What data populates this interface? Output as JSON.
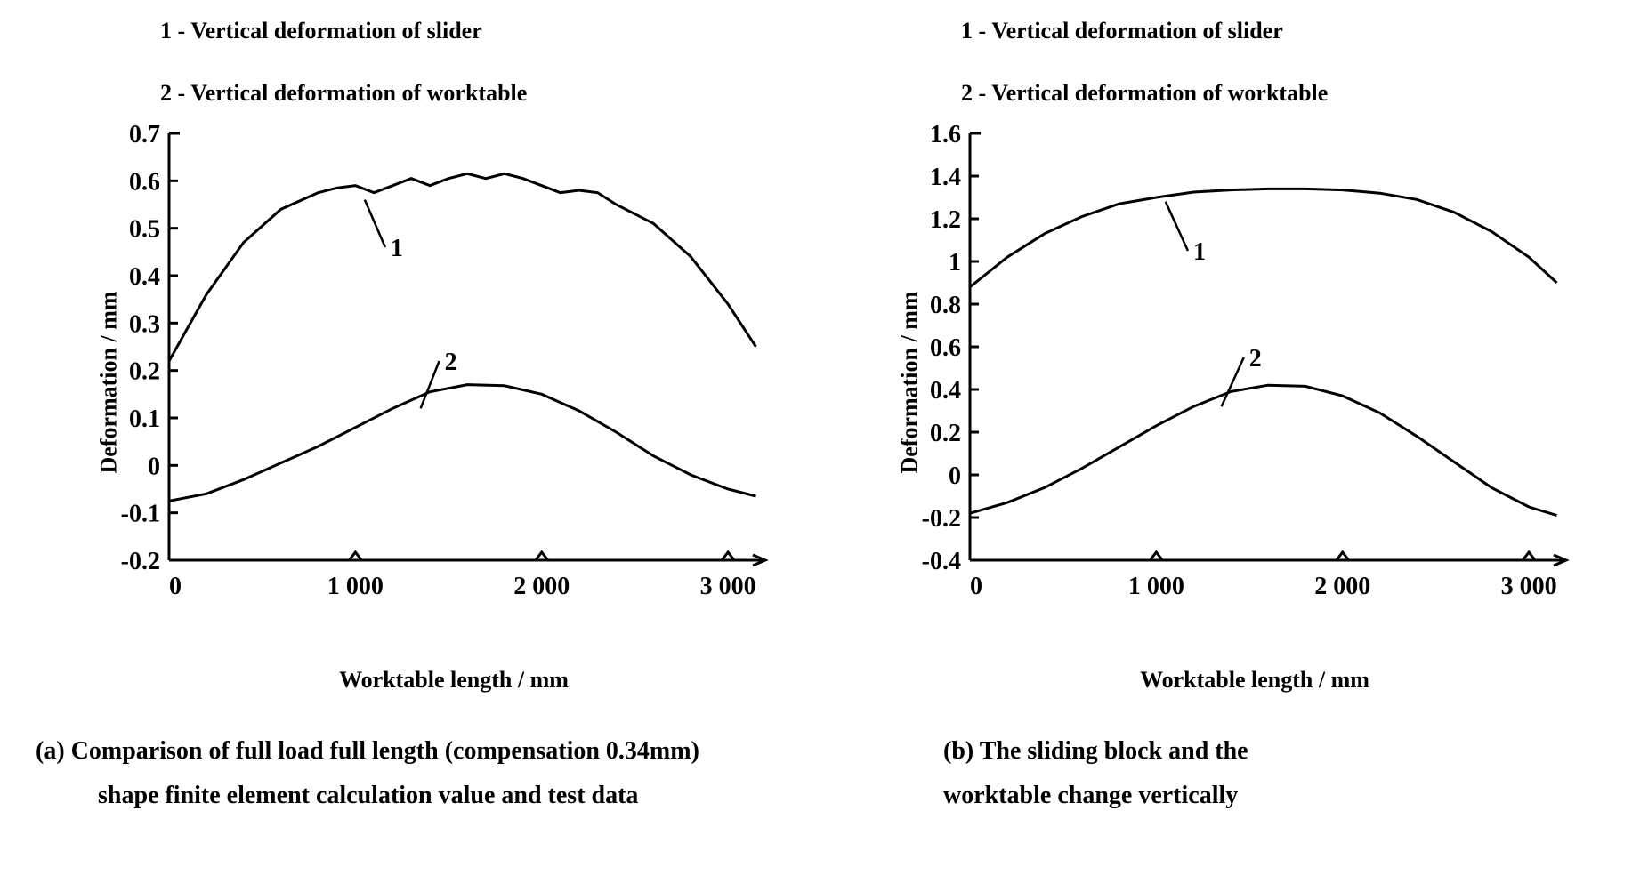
{
  "panel_a": {
    "legend1": "1 - Vertical deformation of slider",
    "legend2": "2 - Vertical deformation of worktable",
    "chart": {
      "type": "line",
      "xlim": [
        0,
        3200
      ],
      "ylim": [
        -0.2,
        0.7
      ],
      "xticks": [
        0,
        1000,
        2000,
        3000
      ],
      "xtick_labels": [
        "0",
        "1 000",
        "2 000",
        "3 000"
      ],
      "yticks": [
        -0.2,
        -0.1,
        0,
        0.1,
        0.2,
        0.3,
        0.4,
        0.5,
        0.6,
        0.7
      ],
      "ytick_labels": [
        "-0.2",
        "-0.1",
        "0",
        "0.1",
        "0.2",
        "0.3",
        "0.4",
        "0.5",
        "0.6",
        "0.7"
      ],
      "series1": {
        "label": "1",
        "leader_from": [
          1050,
          0.56
        ],
        "leader_to": [
          1160,
          0.46
        ],
        "points": [
          [
            0,
            0.22
          ],
          [
            200,
            0.36
          ],
          [
            400,
            0.47
          ],
          [
            600,
            0.54
          ],
          [
            800,
            0.575
          ],
          [
            900,
            0.585
          ],
          [
            1000,
            0.59
          ],
          [
            1100,
            0.575
          ],
          [
            1200,
            0.59
          ],
          [
            1300,
            0.605
          ],
          [
            1400,
            0.59
          ],
          [
            1500,
            0.605
          ],
          [
            1600,
            0.615
          ],
          [
            1700,
            0.605
          ],
          [
            1800,
            0.615
          ],
          [
            1900,
            0.605
          ],
          [
            2000,
            0.59
          ],
          [
            2100,
            0.575
          ],
          [
            2200,
            0.58
          ],
          [
            2300,
            0.575
          ],
          [
            2400,
            0.55
          ],
          [
            2600,
            0.51
          ],
          [
            2800,
            0.44
          ],
          [
            3000,
            0.34
          ],
          [
            3150,
            0.25
          ]
        ]
      },
      "series2": {
        "label": "2",
        "leader_from": [
          1350,
          0.12
        ],
        "leader_to": [
          1450,
          0.22
        ],
        "points": [
          [
            0,
            -0.075
          ],
          [
            200,
            -0.06
          ],
          [
            400,
            -0.03
          ],
          [
            600,
            0.005
          ],
          [
            800,
            0.04
          ],
          [
            1000,
            0.08
          ],
          [
            1200,
            0.12
          ],
          [
            1400,
            0.155
          ],
          [
            1600,
            0.17
          ],
          [
            1800,
            0.168
          ],
          [
            2000,
            0.15
          ],
          [
            2200,
            0.115
          ],
          [
            2400,
            0.07
          ],
          [
            2600,
            0.02
          ],
          [
            2800,
            -0.02
          ],
          [
            3000,
            -0.05
          ],
          [
            3150,
            -0.065
          ]
        ]
      },
      "background_color": "#ffffff",
      "line_color": "#000000",
      "line_width": 3,
      "axis_width": 3,
      "tick_fontsize": 28,
      "label_fontsize": 26
    },
    "xlabel": "Worktable length / mm",
    "ylabel": "Deformation / mm",
    "caption_line1": "(a) Comparison of full load full length (compensation 0.34mm)",
    "caption_line2": "shape finite element calculation value and test data"
  },
  "panel_b": {
    "legend1": "1 - Vertical deformation of slider",
    "legend2": "2 - Vertical deformation of worktable",
    "chart": {
      "type": "line",
      "xlim": [
        0,
        3200
      ],
      "ylim": [
        -0.4,
        1.6
      ],
      "xticks": [
        0,
        1000,
        2000,
        3000
      ],
      "xtick_labels": [
        "0",
        "1 000",
        "2 000",
        "3 000"
      ],
      "yticks": [
        -0.4,
        -0.2,
        0,
        0.2,
        0.4,
        0.6,
        0.8,
        1.0,
        1.2,
        1.4,
        1.6
      ],
      "ytick_labels": [
        "-0.4",
        "-0.2",
        "0",
        "0.2",
        "0.4",
        "0.6",
        "0.8",
        "1",
        "1.2",
        "1.4",
        "1.6"
      ],
      "series1": {
        "label": "1",
        "leader_from": [
          1050,
          1.28
        ],
        "leader_to": [
          1170,
          1.05
        ],
        "points": [
          [
            0,
            0.88
          ],
          [
            200,
            1.02
          ],
          [
            400,
            1.13
          ],
          [
            600,
            1.21
          ],
          [
            800,
            1.27
          ],
          [
            1000,
            1.3
          ],
          [
            1200,
            1.325
          ],
          [
            1400,
            1.335
          ],
          [
            1600,
            1.34
          ],
          [
            1800,
            1.34
          ],
          [
            2000,
            1.335
          ],
          [
            2200,
            1.32
          ],
          [
            2400,
            1.29
          ],
          [
            2600,
            1.23
          ],
          [
            2800,
            1.14
          ],
          [
            3000,
            1.02
          ],
          [
            3150,
            0.9
          ]
        ]
      },
      "series2": {
        "label": "2",
        "leader_from": [
          1350,
          0.32
        ],
        "leader_to": [
          1470,
          0.55
        ],
        "points": [
          [
            0,
            -0.18
          ],
          [
            200,
            -0.13
          ],
          [
            400,
            -0.06
          ],
          [
            600,
            0.03
          ],
          [
            800,
            0.13
          ],
          [
            1000,
            0.23
          ],
          [
            1200,
            0.32
          ],
          [
            1400,
            0.39
          ],
          [
            1600,
            0.42
          ],
          [
            1800,
            0.415
          ],
          [
            2000,
            0.37
          ],
          [
            2200,
            0.29
          ],
          [
            2400,
            0.18
          ],
          [
            2600,
            0.06
          ],
          [
            2800,
            -0.06
          ],
          [
            3000,
            -0.15
          ],
          [
            3150,
            -0.19
          ]
        ]
      },
      "background_color": "#ffffff",
      "line_color": "#000000",
      "line_width": 3,
      "axis_width": 3,
      "tick_fontsize": 28,
      "label_fontsize": 26
    },
    "xlabel": "Worktable length / mm",
    "ylabel": "Deformation / mm",
    "caption_line1": "(b) The sliding block and the",
    "caption_line2": "worktable change vertically"
  }
}
